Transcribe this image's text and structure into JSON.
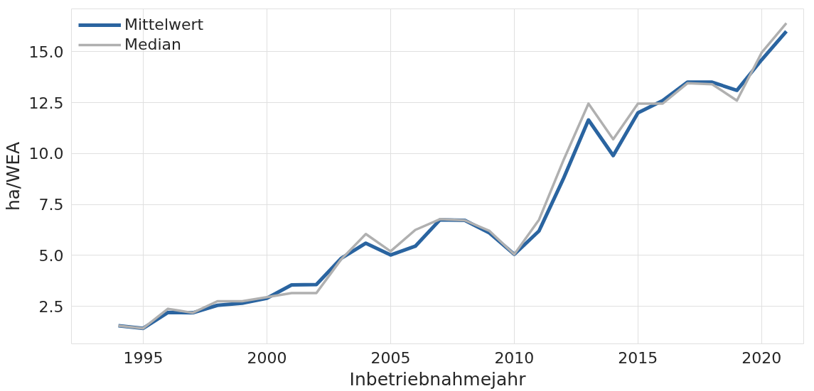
{
  "chart_data": {
    "type": "line",
    "xlabel": "Inbetriebnahmejahr",
    "ylabel": "ha/WEA",
    "x": [
      1994,
      1995,
      1996,
      1997,
      1998,
      1999,
      2000,
      2001,
      2002,
      2003,
      2004,
      2005,
      2006,
      2007,
      2008,
      2009,
      2010,
      2011,
      2012,
      2013,
      2014,
      2015,
      2016,
      2017,
      2018,
      2019,
      2020,
      2021
    ],
    "series": [
      {
        "name": "Mittelwert",
        "color": "#2a64a0",
        "values": [
          1.55,
          1.42,
          2.2,
          2.18,
          2.55,
          2.65,
          2.9,
          3.55,
          3.57,
          4.85,
          5.6,
          5.02,
          5.45,
          6.75,
          6.72,
          6.1,
          5.05,
          6.2,
          8.8,
          11.65,
          9.9,
          12.0,
          12.6,
          13.5,
          13.5,
          13.1,
          14.6,
          16.0
        ]
      },
      {
        "name": "Median",
        "color": "#b0b0b0",
        "values": [
          1.55,
          1.42,
          2.38,
          2.18,
          2.75,
          2.75,
          2.95,
          3.15,
          3.15,
          4.8,
          6.05,
          5.2,
          6.25,
          6.78,
          6.72,
          6.2,
          5.05,
          6.75,
          9.7,
          12.45,
          10.7,
          12.45,
          12.45,
          13.45,
          13.4,
          12.6,
          14.95,
          16.4
        ]
      }
    ],
    "xlim": [
      1992.1,
      2021.7
    ],
    "xticks": [
      1995,
      2000,
      2005,
      2010,
      2015,
      2020
    ],
    "ylim": [
      0.66,
      17.1
    ],
    "yticks": [
      {
        "value": 2.5,
        "label": "2.5"
      },
      {
        "value": 5,
        "label": "5.0"
      },
      {
        "value": 7.5,
        "label": "7.5"
      },
      {
        "value": 10,
        "label": "10.0"
      },
      {
        "value": 12.5,
        "label": "12.5"
      },
      {
        "value": 15,
        "label": "15.0"
      }
    ],
    "grid": true,
    "legend": "top left",
    "line_style": "solid"
  }
}
